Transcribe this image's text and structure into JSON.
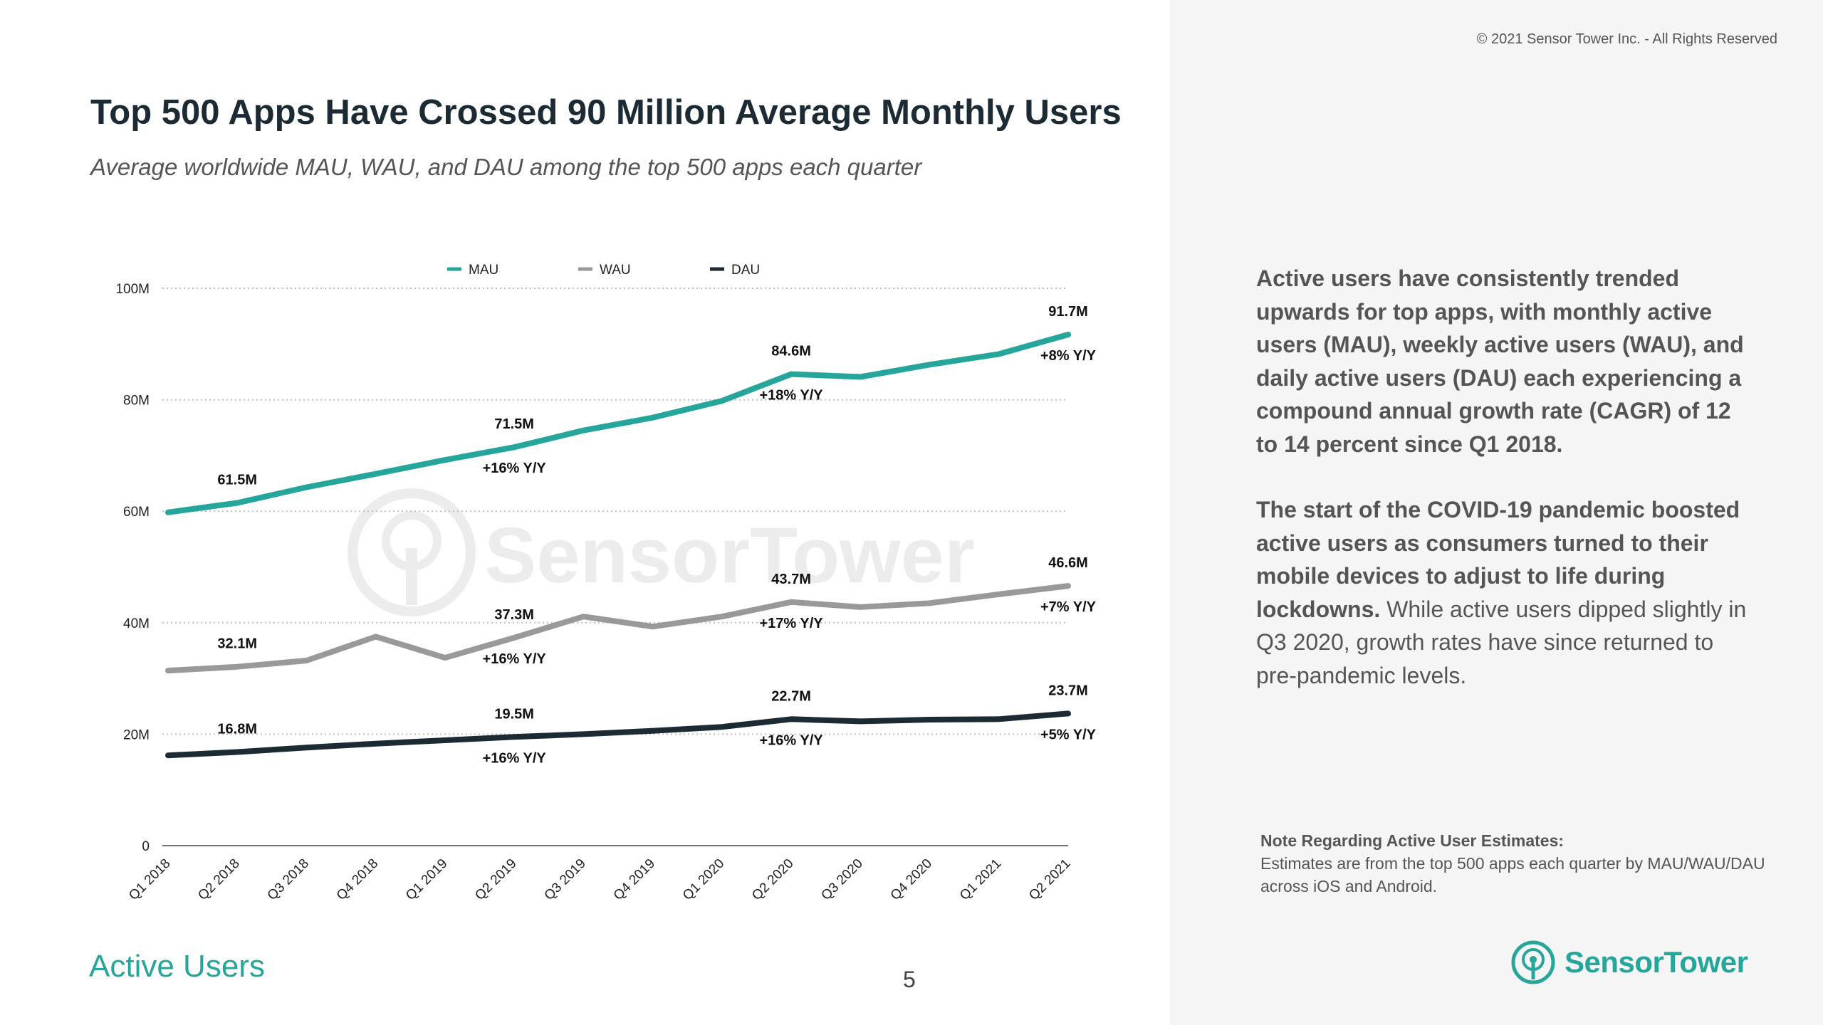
{
  "header": {
    "copyright": "© 2021 Sensor Tower Inc. - All Rights Reserved",
    "title": "Top 500 Apps Have Crossed 90 Million Average Monthly Users",
    "subtitle": "Average worldwide MAU, WAU, and DAU among the top 500 apps each quarter"
  },
  "chart_data": {
    "type": "line",
    "categories": [
      "Q1 2018",
      "Q2 2018",
      "Q3 2018",
      "Q4 2018",
      "Q1 2019",
      "Q2 2019",
      "Q3 2019",
      "Q4 2019",
      "Q1 2020",
      "Q2 2020",
      "Q3 2020",
      "Q4 2020",
      "Q1 2021",
      "Q2 2021"
    ],
    "ylim": [
      0,
      100
    ],
    "yticks": [
      {
        "value": 0,
        "label": "0"
      },
      {
        "value": 20,
        "label": "20M"
      },
      {
        "value": 40,
        "label": "40M"
      },
      {
        "value": 60,
        "label": "60M"
      },
      {
        "value": 80,
        "label": "80M"
      },
      {
        "value": 100,
        "label": "100M"
      }
    ],
    "grid": true,
    "legend_position": "top",
    "watermark": "SensorTower",
    "series": [
      {
        "name": "MAU",
        "color": "#26a69a",
        "values": [
          59.8,
          61.5,
          64.3,
          66.7,
          69.2,
          71.5,
          74.5,
          76.8,
          79.8,
          84.6,
          84.1,
          86.3,
          88.2,
          91.7
        ]
      },
      {
        "name": "WAU",
        "color": "#999999",
        "values": [
          31.4,
          32.1,
          33.2,
          37.5,
          33.7,
          37.3,
          41.1,
          39.3,
          41.1,
          43.7,
          42.8,
          43.5,
          45.1,
          46.6
        ]
      },
      {
        "name": "DAU",
        "color": "#1b2a33",
        "values": [
          16.2,
          16.8,
          17.6,
          18.3,
          18.9,
          19.5,
          20.0,
          20.6,
          21.3,
          22.7,
          22.3,
          22.6,
          22.7,
          23.7
        ]
      }
    ],
    "annotations": [
      {
        "series": "MAU",
        "index": 1,
        "value_label": "61.5M"
      },
      {
        "series": "MAU",
        "index": 5,
        "value_label": "71.5M",
        "growth_label": "+16% Y/Y"
      },
      {
        "series": "MAU",
        "index": 9,
        "value_label": "84.6M",
        "growth_label": "+18% Y/Y"
      },
      {
        "series": "MAU",
        "index": 13,
        "value_label": "91.7M",
        "growth_label": "+8% Y/Y"
      },
      {
        "series": "WAU",
        "index": 1,
        "value_label": "32.1M"
      },
      {
        "series": "WAU",
        "index": 5,
        "value_label": "37.3M",
        "growth_label": "+16% Y/Y"
      },
      {
        "series": "WAU",
        "index": 9,
        "value_label": "43.7M",
        "growth_label": "+17% Y/Y"
      },
      {
        "series": "WAU",
        "index": 13,
        "value_label": "46.6M",
        "growth_label": "+7% Y/Y"
      },
      {
        "series": "DAU",
        "index": 1,
        "value_label": "16.8M"
      },
      {
        "series": "DAU",
        "index": 5,
        "value_label": "19.5M",
        "growth_label": "+16% Y/Y"
      },
      {
        "series": "DAU",
        "index": 9,
        "value_label": "22.7M",
        "growth_label": "+16% Y/Y"
      },
      {
        "series": "DAU",
        "index": 13,
        "value_label": "23.7M",
        "growth_label": "+5% Y/Y"
      }
    ]
  },
  "footer": {
    "section_label": "Active Users",
    "page_number": "5"
  },
  "panel": {
    "p1": "Active users have consistently trended upwards for top apps, with monthly active users (MAU), weekly active users (WAU), and daily active users (DAU) each experiencing a compound annual growth rate (CAGR) of 12 to 14 percent since Q1 2018.",
    "p2_bold": "The start of the COVID-19 pandemic boosted active users as consumers turned to their mobile devices to adjust to life during lockdowns.",
    "p2_rest": " While active users dipped slightly in Q3 2020, growth rates have since returned to pre-pandemic levels.",
    "note_title": "Note Regarding Active User Estimates:",
    "note_body": "Estimates are from the top 500 apps each quarter by MAU/WAU/DAU across iOS and Android.",
    "logo_text": "SensorTower",
    "accent": "#26a69a"
  }
}
